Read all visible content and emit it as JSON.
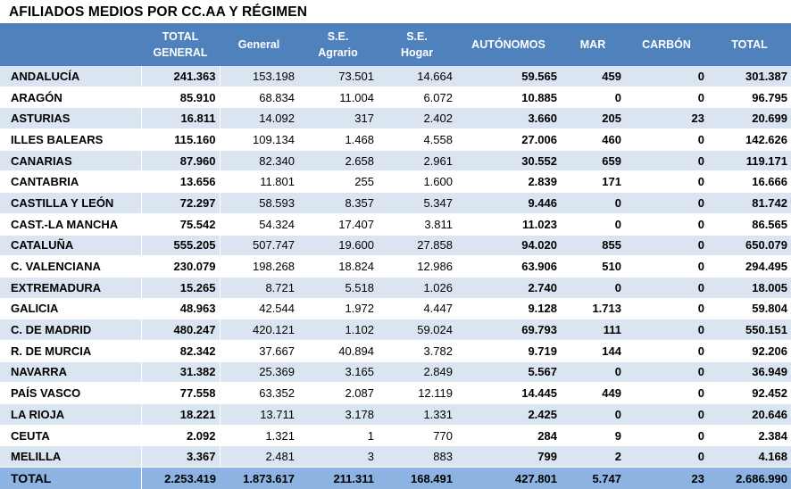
{
  "title": "AFILIADOS MEDIOS POR CC.AA Y RÉGIMEN",
  "headers": [
    "",
    "TOTAL\nGENERAL",
    "General",
    "S.E.\nAgrario",
    "S.E.\nHogar",
    "AUTÓNOMOS",
    "MAR",
    "CARBÓN",
    "TOTAL"
  ],
  "rows": [
    [
      "ANDALUCÍA",
      "241.363",
      "153.198",
      "73.501",
      "14.664",
      "59.565",
      "459",
      "0",
      "301.387"
    ],
    [
      "ARAGÓN",
      "85.910",
      "68.834",
      "11.004",
      "6.072",
      "10.885",
      "0",
      "0",
      "96.795"
    ],
    [
      "ASTURIAS",
      "16.811",
      "14.092",
      "317",
      "2.402",
      "3.660",
      "205",
      "23",
      "20.699"
    ],
    [
      "ILLES BALEARS",
      "115.160",
      "109.134",
      "1.468",
      "4.558",
      "27.006",
      "460",
      "0",
      "142.626"
    ],
    [
      "CANARIAS",
      "87.960",
      "82.340",
      "2.658",
      "2.961",
      "30.552",
      "659",
      "0",
      "119.171"
    ],
    [
      "CANTABRIA",
      "13.656",
      "11.801",
      "255",
      "1.600",
      "2.839",
      "171",
      "0",
      "16.666"
    ],
    [
      "CASTILLA Y LEÓN",
      "72.297",
      "58.593",
      "8.357",
      "5.347",
      "9.446",
      "0",
      "0",
      "81.742"
    ],
    [
      "CAST.-LA MANCHA",
      "75.542",
      "54.324",
      "17.407",
      "3.811",
      "11.023",
      "0",
      "0",
      "86.565"
    ],
    [
      "CATALUÑA",
      "555.205",
      "507.747",
      "19.600",
      "27.858",
      "94.020",
      "855",
      "0",
      "650.079"
    ],
    [
      "C. VALENCIANA",
      "230.079",
      "198.268",
      "18.824",
      "12.986",
      "63.906",
      "510",
      "0",
      "294.495"
    ],
    [
      "EXTREMADURA",
      "15.265",
      "8.721",
      "5.518",
      "1.026",
      "2.740",
      "0",
      "0",
      "18.005"
    ],
    [
      "GALICIA",
      "48.963",
      "42.544",
      "1.972",
      "4.447",
      "9.128",
      "1.713",
      "0",
      "59.804"
    ],
    [
      "C. DE MADRID",
      "480.247",
      "420.121",
      "1.102",
      "59.024",
      "69.793",
      "111",
      "0",
      "550.151"
    ],
    [
      "R. DE MURCIA",
      "82.342",
      "37.667",
      "40.894",
      "3.782",
      "9.719",
      "144",
      "0",
      "92.206"
    ],
    [
      "NAVARRA",
      "31.382",
      "25.369",
      "3.165",
      "2.849",
      "5.567",
      "0",
      "0",
      "36.949"
    ],
    [
      "PAÍS VASCO",
      "77.558",
      "63.352",
      "2.087",
      "12.119",
      "14.445",
      "449",
      "0",
      "92.452"
    ],
    [
      "LA RIOJA",
      "18.221",
      "13.711",
      "3.178",
      "1.331",
      "2.425",
      "0",
      "0",
      "20.646"
    ],
    [
      "CEUTA",
      "2.092",
      "1.321",
      "1",
      "770",
      "284",
      "9",
      "0",
      "2.384"
    ],
    [
      "MELILLA",
      "3.367",
      "2.481",
      "3",
      "883",
      "799",
      "2",
      "0",
      "4.168"
    ]
  ],
  "total": [
    "TOTAL",
    "2.253.419",
    "1.873.617",
    "211.311",
    "168.491",
    "427.801",
    "5.747",
    "23",
    "2.686.990"
  ],
  "colors": {
    "header": "#4f81bd",
    "band": "#dbe5f1",
    "total": "#8db3e2"
  }
}
